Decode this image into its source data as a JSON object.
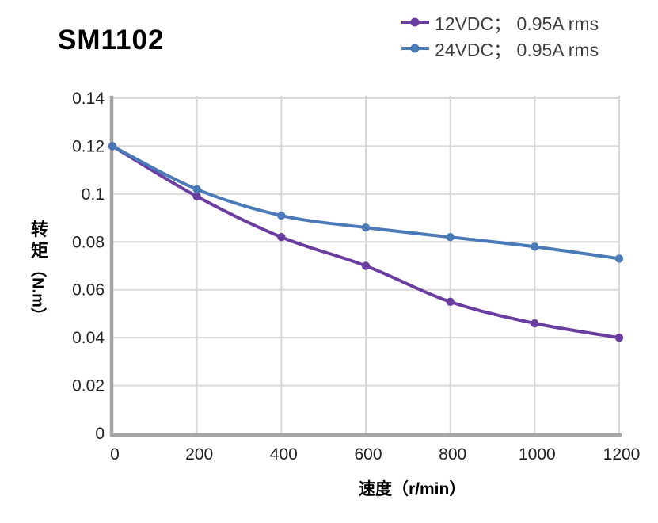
{
  "page": {
    "title": "SM1102"
  },
  "legend": {
    "items": [
      {
        "label": "12VDC； 0.95A rms",
        "color": "#6a3da0"
      },
      {
        "label": "24VDC； 0.95A rms",
        "color": "#4a7ab7"
      }
    ]
  },
  "axes": {
    "x_title": "速度（r/min）",
    "y_title_cjk": "转矩",
    "y_title_latin": "（N.m）"
  },
  "chart_data": {
    "type": "line",
    "title": "SM1102",
    "xlabel": "速度（r/min）",
    "ylabel": "转矩（N.m）",
    "x": [
      0,
      200,
      400,
      600,
      800,
      1000,
      1200
    ],
    "series": [
      {
        "name": "12VDC； 0.95A rms",
        "color": "#6a3da0",
        "values": [
          0.12,
          0.099,
          0.082,
          0.07,
          0.055,
          0.046,
          0.04
        ]
      },
      {
        "name": "24VDC； 0.95A rms",
        "color": "#4a7ab7",
        "values": [
          0.12,
          0.102,
          0.091,
          0.086,
          0.082,
          0.078,
          0.073
        ]
      }
    ],
    "xlim": [
      0,
      1200
    ],
    "ylim": [
      0,
      0.14
    ],
    "x_ticks": [
      0,
      200,
      400,
      600,
      800,
      1000,
      1200
    ],
    "x_tick_labels": [
      "0",
      "200",
      "400",
      "600",
      "800",
      "1000",
      "1200"
    ],
    "y_ticks": [
      0,
      0.02,
      0.04,
      0.06,
      0.08,
      0.1,
      0.12,
      0.14
    ],
    "y_tick_labels": [
      "0",
      "0.02",
      "0.04",
      "0.06",
      "0.08",
      "0.1",
      "0.12",
      "0.14"
    ],
    "grid": true,
    "smooth_lines": true,
    "markers": true,
    "legend_position": "top-right",
    "colors": {
      "grid": "#d9d9d9",
      "axis": "#a6a6a6",
      "tick_text": "#1f1f1f"
    }
  }
}
